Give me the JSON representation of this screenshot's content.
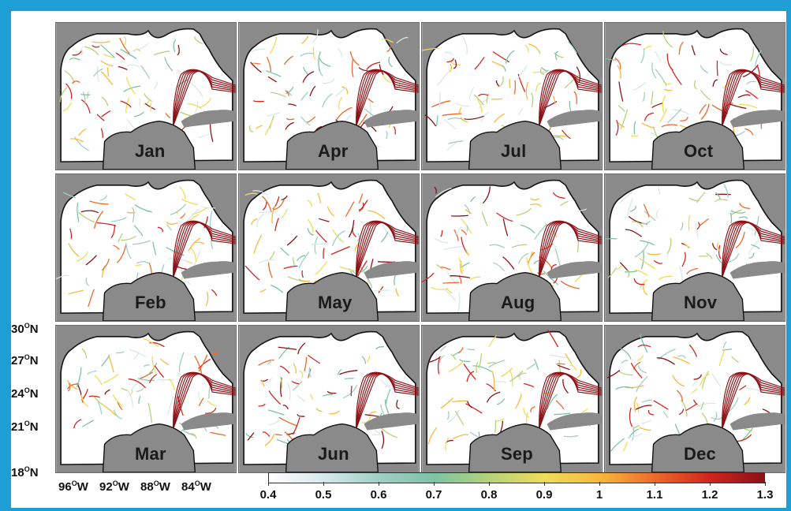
{
  "panels": [
    {
      "month": "Jan"
    },
    {
      "month": "Apr"
    },
    {
      "month": "Jul"
    },
    {
      "month": "Oct"
    },
    {
      "month": "Feb"
    },
    {
      "month": "May"
    },
    {
      "month": "Aug"
    },
    {
      "month": "Nov"
    },
    {
      "month": "Mar"
    },
    {
      "month": "Jun"
    },
    {
      "month": "Sep"
    },
    {
      "month": "Dec"
    }
  ],
  "lat_labels": [
    "30",
    "27",
    "24",
    "21",
    "18"
  ],
  "lat_suffix": "N",
  "lon_labels": [
    "96",
    "92",
    "88",
    "84"
  ],
  "lon_suffix": "W",
  "degree_symbol": "O",
  "colorbar": {
    "ticks": [
      "0.4",
      "0.5",
      "0.6",
      "0.7",
      "0.8",
      "0.9",
      "1",
      "1.1",
      "1.2",
      "1.3"
    ],
    "min": 0.4,
    "max": 1.3,
    "colors": [
      "#ffffff",
      "#d6e8ec",
      "#9fcfc6",
      "#7cc3a4",
      "#b4d27a",
      "#eedc5a",
      "#f7b93b",
      "#ee6a2a",
      "#d3251f",
      "#8c1116"
    ]
  },
  "colors": {
    "background": "#1d9fd6",
    "land": "#8a8a8a",
    "coastline": "#111111",
    "strong_flow": "#8c1116"
  }
}
